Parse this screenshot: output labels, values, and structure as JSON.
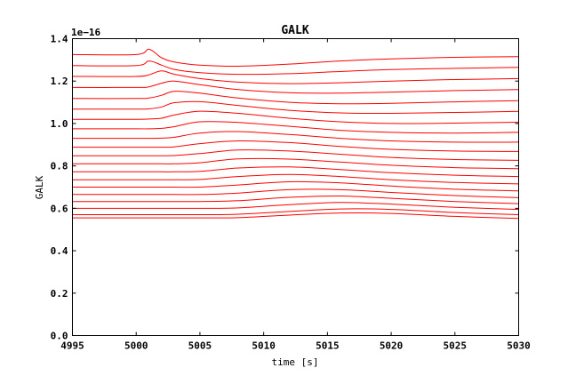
{
  "chart_data": {
    "type": "line",
    "title": "GALK",
    "xlabel": "time [s]",
    "ylabel": "GALK",
    "y_offset_label": "1e−16",
    "xlim": [
      4995,
      5030
    ],
    "ylim": [
      0.0,
      1.4
    ],
    "xticks": [
      4995,
      5000,
      5005,
      5010,
      5015,
      5020,
      5025,
      5030
    ],
    "xtick_labels": [
      "4995",
      "5000",
      "5005",
      "5010",
      "5015",
      "5020",
      "5025",
      "5030"
    ],
    "yticks": [
      0.0,
      0.2,
      0.4,
      0.6,
      0.8,
      1.0,
      1.2,
      1.4
    ],
    "ytick_labels": [
      "0.0",
      "0.2",
      "0.4",
      "0.6",
      "0.8",
      "1.0",
      "1.2",
      "1.4"
    ],
    "grid": false,
    "line_color": "#ff0000",
    "series": [
      {
        "x": [
          4995,
          5000,
          5001,
          5002,
          5003,
          5005,
          5008,
          5012,
          5016,
          5020,
          5025,
          5030
        ],
        "values": [
          1.325,
          1.325,
          1.35,
          1.31,
          1.29,
          1.275,
          1.27,
          1.28,
          1.295,
          1.305,
          1.312,
          1.315
        ]
      },
      {
        "x": [
          4995,
          5000,
          5001,
          5002,
          5003,
          5005,
          5008,
          5012,
          5016,
          5020,
          5025,
          5030
        ],
        "values": [
          1.273,
          1.273,
          1.295,
          1.275,
          1.255,
          1.24,
          1.232,
          1.235,
          1.245,
          1.254,
          1.26,
          1.265
        ]
      },
      {
        "x": [
          4995,
          5000,
          5001,
          5002,
          5003,
          5005,
          5008,
          5012,
          5016,
          5020,
          5025,
          5030
        ],
        "values": [
          1.222,
          1.222,
          1.23,
          1.248,
          1.232,
          1.212,
          1.195,
          1.188,
          1.192,
          1.2,
          1.207,
          1.212
        ]
      },
      {
        "x": [
          4995,
          5000,
          5001,
          5002,
          5003,
          5005,
          5008,
          5012,
          5016,
          5020,
          5025,
          5030
        ],
        "values": [
          1.17,
          1.17,
          1.173,
          1.19,
          1.2,
          1.183,
          1.16,
          1.145,
          1.143,
          1.148,
          1.155,
          1.16
        ]
      },
      {
        "x": [
          4995,
          5000,
          5001,
          5002,
          5003,
          5005,
          5008,
          5012,
          5016,
          5020,
          5025,
          5030
        ],
        "values": [
          1.118,
          1.118,
          1.12,
          1.133,
          1.152,
          1.143,
          1.12,
          1.1,
          1.093,
          1.095,
          1.102,
          1.108
        ]
      },
      {
        "x": [
          4995,
          5000,
          5001,
          5002,
          5003,
          5005,
          5008,
          5012,
          5016,
          5020,
          5025,
          5030
        ],
        "values": [
          1.068,
          1.068,
          1.069,
          1.078,
          1.098,
          1.103,
          1.085,
          1.062,
          1.05,
          1.048,
          1.052,
          1.057
        ]
      },
      {
        "x": [
          4995,
          5000,
          5001,
          5002,
          5003,
          5005,
          5008,
          5012,
          5016,
          5020,
          5025,
          5030
        ],
        "values": [
          1.02,
          1.02,
          1.021,
          1.025,
          1.04,
          1.058,
          1.048,
          1.025,
          1.008,
          1.0,
          1.002,
          1.006
        ]
      },
      {
        "x": [
          4995,
          5000,
          5001,
          5002,
          5003,
          5005,
          5008,
          5012,
          5016,
          5020,
          5025,
          5030
        ],
        "values": [
          0.975,
          0.975,
          0.975,
          0.977,
          0.985,
          1.008,
          1.005,
          0.987,
          0.968,
          0.958,
          0.955,
          0.958
        ]
      },
      {
        "x": [
          4995,
          5000,
          5001,
          5002,
          5003,
          5005,
          5008,
          5012,
          5016,
          5020,
          5025,
          5030
        ],
        "values": [
          0.93,
          0.93,
          0.93,
          0.931,
          0.935,
          0.955,
          0.962,
          0.948,
          0.93,
          0.918,
          0.912,
          0.912
        ]
      },
      {
        "x": [
          4995,
          5000,
          5001,
          5002,
          5003,
          5005,
          5008,
          5012,
          5016,
          5020,
          5025,
          5030
        ],
        "values": [
          0.888,
          0.888,
          0.888,
          0.888,
          0.89,
          0.905,
          0.918,
          0.91,
          0.892,
          0.878,
          0.87,
          0.868
        ]
      },
      {
        "x": [
          4995,
          5000,
          5001,
          5002,
          5003,
          5005,
          5008,
          5012,
          5016,
          5020,
          5025,
          5030
        ],
        "values": [
          0.848,
          0.848,
          0.848,
          0.848,
          0.849,
          0.858,
          0.875,
          0.87,
          0.855,
          0.84,
          0.83,
          0.826
        ]
      },
      {
        "x": [
          4995,
          5000,
          5001,
          5002,
          5003,
          5005,
          5008,
          5012,
          5016,
          5020,
          5025,
          5030
        ],
        "values": [
          0.81,
          0.81,
          0.81,
          0.81,
          0.81,
          0.815,
          0.833,
          0.832,
          0.818,
          0.803,
          0.792,
          0.787
        ]
      },
      {
        "x": [
          4995,
          5000,
          5001,
          5002,
          5003,
          5005,
          5008,
          5012,
          5016,
          5020,
          5025,
          5030
        ],
        "values": [
          0.772,
          0.772,
          0.772,
          0.772,
          0.772,
          0.774,
          0.79,
          0.795,
          0.783,
          0.768,
          0.756,
          0.75
        ]
      },
      {
        "x": [
          4995,
          5000,
          5001,
          5002,
          5003,
          5005,
          5008,
          5012,
          5016,
          5020,
          5025,
          5030
        ],
        "values": [
          0.735,
          0.735,
          0.735,
          0.735,
          0.735,
          0.736,
          0.75,
          0.76,
          0.75,
          0.735,
          0.722,
          0.715
        ]
      },
      {
        "x": [
          4995,
          5000,
          5001,
          5002,
          5003,
          5005,
          5008,
          5012,
          5016,
          5020,
          5025,
          5030
        ],
        "values": [
          0.7,
          0.7,
          0.7,
          0.7,
          0.7,
          0.7,
          0.71,
          0.725,
          0.72,
          0.705,
          0.69,
          0.682
        ]
      },
      {
        "x": [
          4995,
          5000,
          5001,
          5002,
          5003,
          5005,
          5008,
          5012,
          5016,
          5020,
          5025,
          5030
        ],
        "values": [
          0.665,
          0.665,
          0.665,
          0.665,
          0.665,
          0.665,
          0.672,
          0.688,
          0.688,
          0.675,
          0.66,
          0.65
        ]
      },
      {
        "x": [
          4995,
          5000,
          5001,
          5002,
          5003,
          5005,
          5008,
          5012,
          5016,
          5020,
          5025,
          5030
        ],
        "values": [
          0.632,
          0.632,
          0.632,
          0.632,
          0.632,
          0.632,
          0.636,
          0.652,
          0.658,
          0.647,
          0.632,
          0.622
        ]
      },
      {
        "x": [
          4995,
          5000,
          5001,
          5002,
          5003,
          5005,
          5008,
          5012,
          5016,
          5020,
          5025,
          5030
        ],
        "values": [
          0.6,
          0.6,
          0.6,
          0.6,
          0.6,
          0.6,
          0.602,
          0.617,
          0.628,
          0.62,
          0.605,
          0.595
        ]
      },
      {
        "x": [
          4995,
          5000,
          5001,
          5002,
          5003,
          5005,
          5008,
          5012,
          5016,
          5020,
          5025,
          5030
        ],
        "values": [
          0.57,
          0.57,
          0.57,
          0.57,
          0.57,
          0.57,
          0.572,
          0.585,
          0.597,
          0.595,
          0.58,
          0.57
        ]
      },
      {
        "x": [
          4995,
          5000,
          5001,
          5002,
          5003,
          5005,
          5008,
          5012,
          5016,
          5020,
          5025,
          5030
        ],
        "values": [
          0.555,
          0.555,
          0.555,
          0.555,
          0.555,
          0.555,
          0.556,
          0.568,
          0.578,
          0.576,
          0.562,
          0.552
        ]
      }
    ]
  }
}
